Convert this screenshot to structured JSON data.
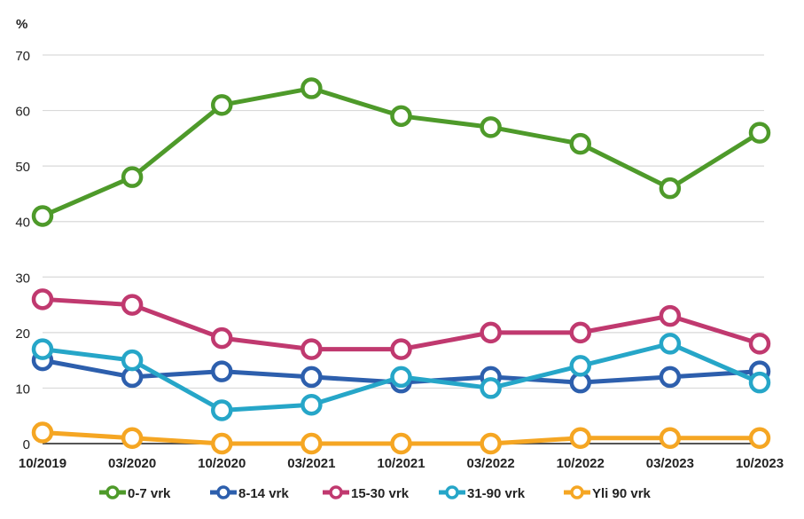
{
  "chart_data": {
    "type": "line",
    "ylabel": "%",
    "ylim": [
      0,
      70
    ],
    "yticks": [
      0,
      10,
      20,
      30,
      40,
      50,
      60,
      70
    ],
    "grid": true,
    "legend": "bottom",
    "categories": [
      "10/2019",
      "03/2020",
      "10/2020",
      "03/2021",
      "10/2021",
      "03/2022",
      "10/2022",
      "03/2023",
      "10/2023"
    ],
    "series": [
      {
        "name": "0-7 vrk",
        "color": "#4e9a2a",
        "values": [
          41,
          48,
          61,
          64,
          59,
          57,
          54,
          46,
          56
        ]
      },
      {
        "name": "8-14 vrk",
        "color": "#2d5fad",
        "values": [
          15,
          12,
          13,
          12,
          11,
          12,
          11,
          12,
          13
        ]
      },
      {
        "name": "15-30 vrk",
        "color": "#c0396f",
        "values": [
          26,
          25,
          19,
          17,
          17,
          20,
          20,
          23,
          18
        ]
      },
      {
        "name": "31-90 vrk",
        "color": "#26a6c8",
        "values": [
          17,
          15,
          6,
          7,
          12,
          10,
          14,
          18,
          11
        ]
      },
      {
        "name": "Yli 90 vrk",
        "color": "#f5a623",
        "values": [
          2,
          1,
          0,
          0,
          0,
          0,
          1,
          1,
          1
        ]
      }
    ]
  }
}
